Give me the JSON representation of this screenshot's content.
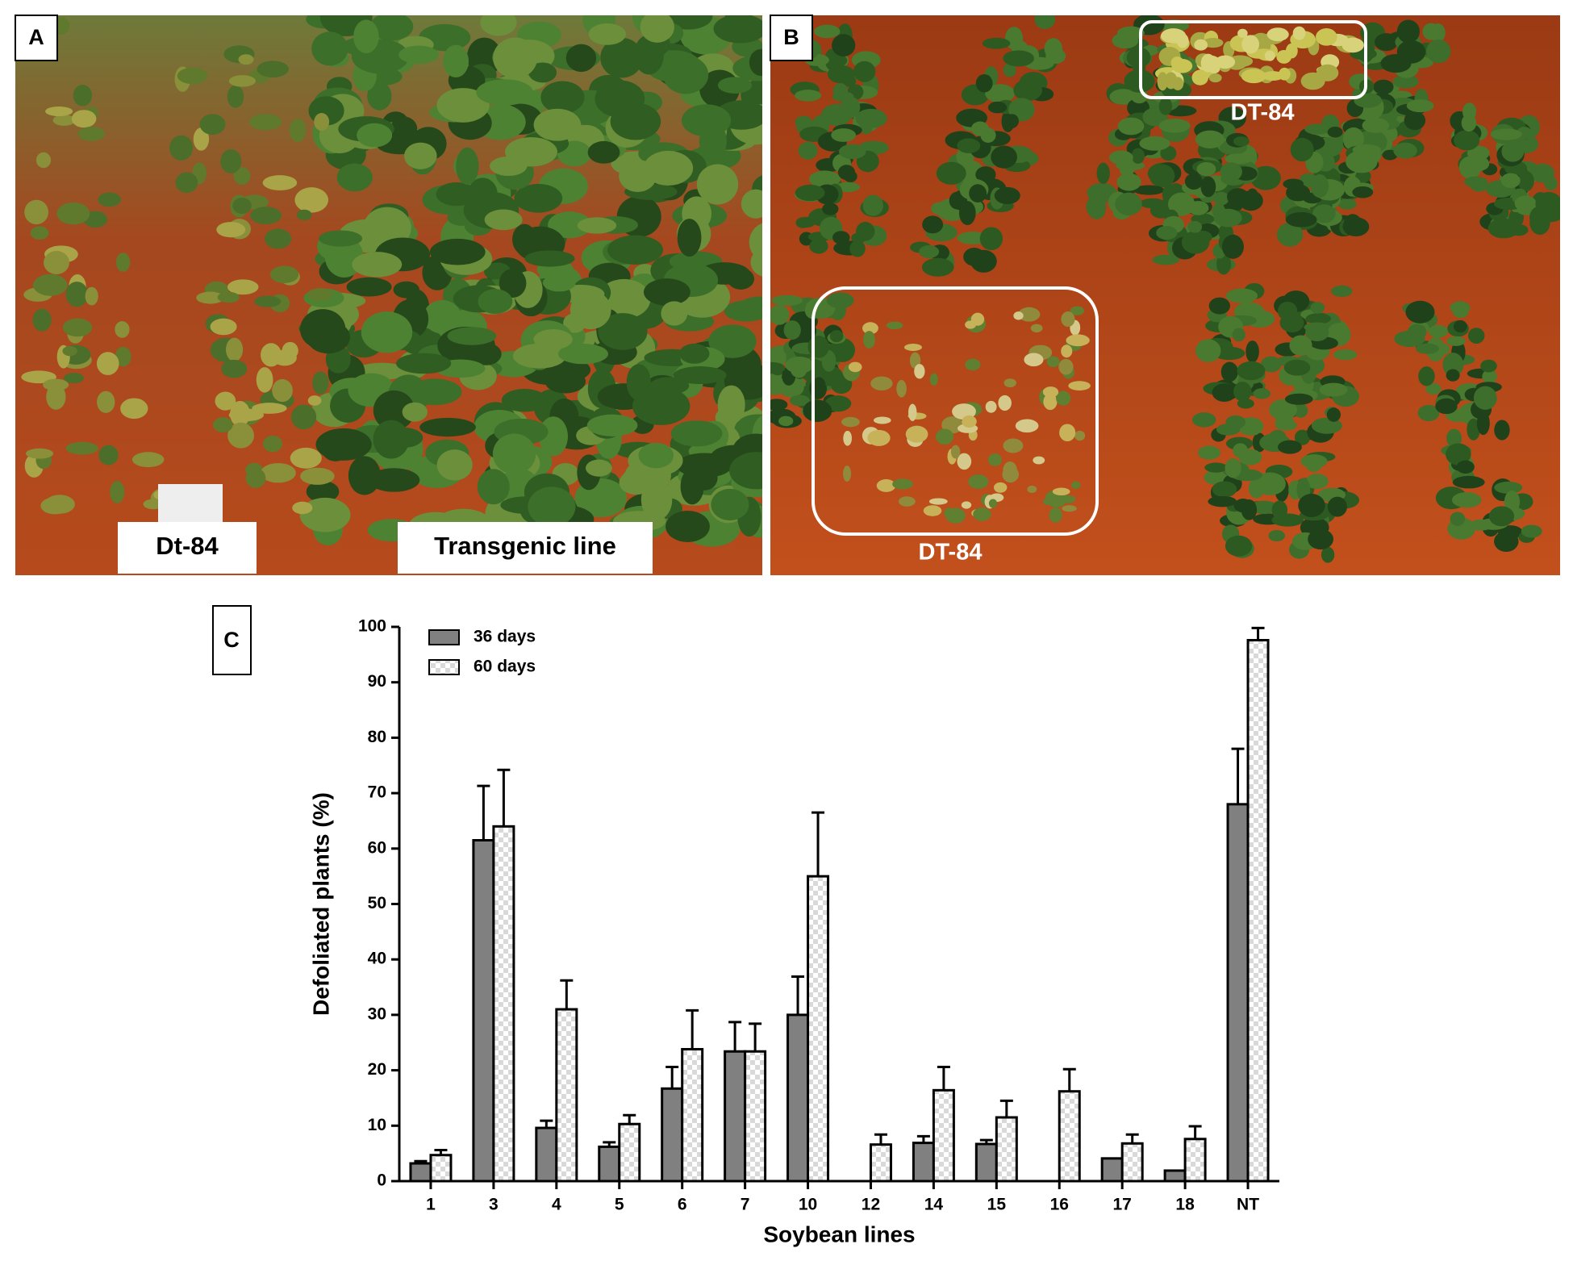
{
  "panels": {
    "a": {
      "label": "A",
      "labels": [
        "Dt-84",
        "Transgenic line"
      ]
    },
    "b": {
      "label": "B",
      "annotations": [
        "DT-84",
        "DT-84"
      ]
    },
    "c": {
      "label": "C"
    }
  },
  "chart_data": {
    "type": "bar",
    "xlabel": "Soybean lines",
    "ylabel": "Defoliated plants (%)",
    "categories": [
      "1",
      "3",
      "4",
      "5",
      "6",
      "7",
      "10",
      "12",
      "14",
      "15",
      "16",
      "17",
      "18",
      "NT"
    ],
    "series": [
      {
        "name": "36 days",
        "color": "#808080",
        "values": [
          3.2,
          61.5,
          9.6,
          6.2,
          16.7,
          23.4,
          30,
          0,
          6.9,
          6.7,
          0,
          4.1,
          1.9,
          68
        ],
        "errors": [
          0.4,
          9.8,
          1.3,
          0.8,
          3.9,
          5.3,
          6.9,
          0,
          1.2,
          0.7,
          0,
          0,
          0,
          10
        ]
      },
      {
        "name": "60 days",
        "color": "#d9d9d9",
        "pattern": "checker",
        "values": [
          4.7,
          64,
          31,
          10.3,
          23.8,
          23.4,
          55,
          6.6,
          16.4,
          11.5,
          16.2,
          6.8,
          7.6,
          97.6
        ],
        "errors": [
          0.9,
          10.2,
          5.2,
          1.6,
          7,
          5,
          11.5,
          1.8,
          4.2,
          3,
          4,
          1.6,
          2.3,
          2.2
        ]
      }
    ],
    "ylim": [
      0,
      100
    ],
    "yticks": [
      0,
      10,
      20,
      30,
      40,
      50,
      60,
      70,
      80,
      90,
      100
    ],
    "legend": "top-left"
  }
}
